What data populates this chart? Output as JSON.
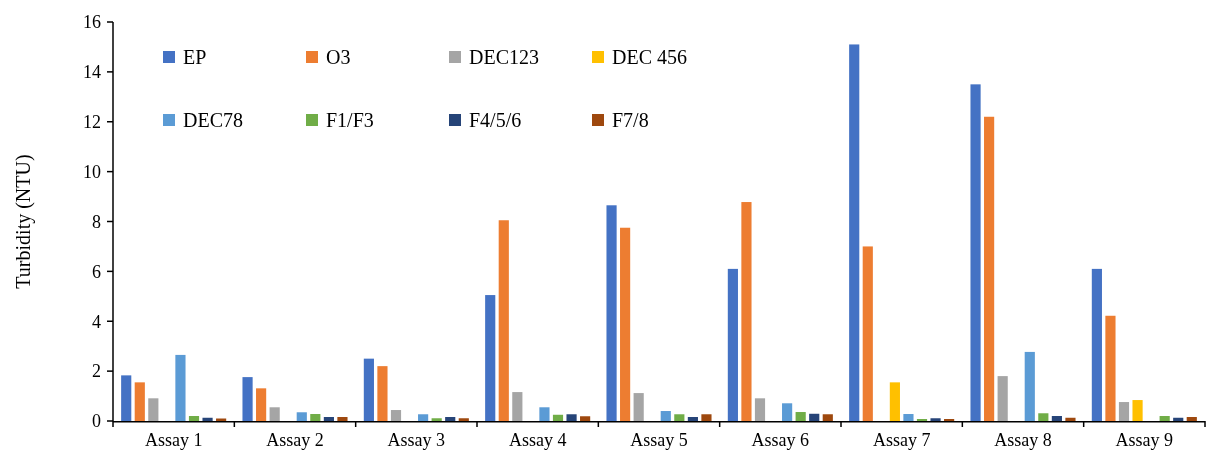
{
  "chart_data": {
    "type": "bar",
    "ylabel": "Turbidity (NTU)",
    "categories": [
      "Assay 1",
      "Assay 2",
      "Assay 3",
      "Assay 4",
      "Assay 5",
      "Assay 6",
      "Assay 7",
      "Assay 8",
      "Assay 9"
    ],
    "series": [
      {
        "name": "EP",
        "color": "#4472c4",
        "values": [
          1.83,
          1.76,
          2.5,
          5.05,
          8.65,
          6.1,
          15.1,
          13.5,
          6.1
        ]
      },
      {
        "name": "O3",
        "color": "#ed7d31",
        "values": [
          1.55,
          1.31,
          2.2,
          8.05,
          7.75,
          8.78,
          7.0,
          12.2,
          4.22
        ]
      },
      {
        "name": "DEC123",
        "color": "#a5a5a5",
        "values": [
          0.91,
          0.55,
          0.44,
          1.16,
          1.12,
          0.91,
          0,
          1.8,
          0.76
        ]
      },
      {
        "name": "DEC 456",
        "color": "#ffc000",
        "values": [
          0,
          0,
          0,
          0,
          0,
          0,
          1.55,
          0,
          0.84
        ]
      },
      {
        "name": "DEC78",
        "color": "#5b9bd5",
        "values": [
          2.65,
          0.35,
          0.27,
          0.55,
          0.4,
          0.71,
          0.28,
          2.77,
          0
        ]
      },
      {
        "name": "F1/F3",
        "color": "#70ad47",
        "values": [
          0.2,
          0.28,
          0.11,
          0.25,
          0.27,
          0.36,
          0.08,
          0.31,
          0.2
        ]
      },
      {
        "name": "F4/5/6",
        "color": "#264478",
        "values": [
          0.13,
          0.16,
          0.16,
          0.27,
          0.16,
          0.29,
          0.11,
          0.2,
          0.13
        ]
      },
      {
        "name": "F7/8",
        "color": "#9e480e",
        "values": [
          0.1,
          0.16,
          0.11,
          0.19,
          0.27,
          0.27,
          0.08,
          0.13,
          0.16
        ]
      }
    ],
    "ylim": [
      0,
      16
    ],
    "yticks": [
      0,
      2,
      4,
      6,
      8,
      10,
      12,
      14,
      16
    ],
    "grid": false,
    "legend": "top left"
  }
}
